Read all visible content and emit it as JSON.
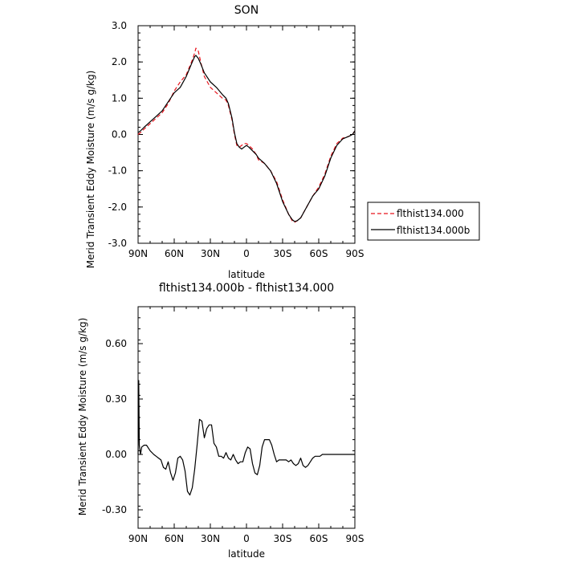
{
  "chart_data": [
    {
      "type": "line",
      "title": "SON",
      "xlabel": "latitude",
      "ylabel": "Merid Transient Eddy Moisture (m/s g/kg)",
      "x_ticks": [
        "90N",
        "60N",
        "30N",
        "0",
        "30S",
        "60S",
        "90S"
      ],
      "y_ticks": [
        "3.0",
        "2.0",
        "1.0",
        "0.0",
        "-1.0",
        "-2.0",
        "-3.0"
      ],
      "xlim": [
        90,
        -90
      ],
      "ylim": [
        -3,
        3
      ],
      "legend_position": "right",
      "series": [
        {
          "name": "flthist134.000",
          "color": "#e8141c",
          "dash": "dashed",
          "x": [
            90,
            88,
            85,
            80,
            75,
            70,
            65,
            60,
            55,
            50,
            45,
            43,
            42,
            40,
            38,
            35,
            30,
            25,
            20,
            17,
            15,
            12,
            10,
            8,
            6,
            4,
            2,
            0,
            -2,
            -5,
            -8,
            -10,
            -15,
            -20,
            -25,
            -30,
            -35,
            -38,
            -40,
            -42,
            -45,
            -50,
            -55,
            -60,
            -65,
            -70,
            -75,
            -80,
            -85,
            -88,
            -90
          ],
          "y": [
            0.0,
            0.05,
            0.15,
            0.3,
            0.45,
            0.6,
            0.85,
            1.2,
            1.45,
            1.65,
            2.05,
            2.25,
            2.38,
            2.3,
            2.0,
            1.6,
            1.3,
            1.15,
            1.0,
            0.95,
            0.8,
            0.4,
            0.0,
            -0.3,
            -0.35,
            -0.3,
            -0.25,
            -0.25,
            -0.3,
            -0.4,
            -0.55,
            -0.7,
            -0.8,
            -1.0,
            -1.3,
            -1.8,
            -2.2,
            -2.38,
            -2.42,
            -2.38,
            -2.3,
            -2.0,
            -1.7,
            -1.45,
            -1.1,
            -0.6,
            -0.25,
            -0.1,
            -0.05,
            0.0,
            0.1
          ]
        },
        {
          "name": "flthist134.000b",
          "color": "#000000",
          "dash": "solid",
          "x": [
            90,
            88,
            85,
            80,
            75,
            70,
            65,
            60,
            55,
            50,
            45,
            43,
            42,
            40,
            38,
            35,
            30,
            25,
            20,
            17,
            15,
            12,
            10,
            8,
            6,
            4,
            2,
            0,
            -2,
            -5,
            -8,
            -10,
            -15,
            -20,
            -25,
            -30,
            -35,
            -38,
            -40,
            -42,
            -45,
            -50,
            -55,
            -60,
            -65,
            -70,
            -75,
            -80,
            -85,
            -88,
            -90
          ],
          "y": [
            0.05,
            0.1,
            0.2,
            0.35,
            0.5,
            0.65,
            0.9,
            1.15,
            1.3,
            1.6,
            2.0,
            2.15,
            2.18,
            2.1,
            1.95,
            1.7,
            1.45,
            1.3,
            1.1,
            1.0,
            0.85,
            0.45,
            0.05,
            -0.25,
            -0.35,
            -0.4,
            -0.35,
            -0.3,
            -0.35,
            -0.45,
            -0.55,
            -0.65,
            -0.8,
            -1.0,
            -1.35,
            -1.85,
            -2.2,
            -2.35,
            -2.4,
            -2.38,
            -2.3,
            -2.0,
            -1.7,
            -1.5,
            -1.15,
            -0.65,
            -0.3,
            -0.12,
            -0.05,
            0.0,
            0.1
          ]
        }
      ]
    },
    {
      "type": "line",
      "title": "flthist134.000b - flthist134.000",
      "xlabel": "latitude",
      "ylabel": "Merid Transient Eddy Moisture (m/s g/kg)",
      "x_ticks": [
        "90N",
        "60N",
        "30N",
        "0",
        "30S",
        "60S",
        "90S"
      ],
      "y_ticks": [
        "0.60",
        "0.30",
        "0.00",
        "-0.30"
      ],
      "xlim": [
        90,
        -90
      ],
      "ylim": [
        -0.4,
        0.8
      ],
      "series": [
        {
          "color": "#000000",
          "dash": "solid",
          "x": [
            90,
            89.5,
            89,
            88,
            87,
            85,
            83,
            80,
            77,
            75,
            73,
            71,
            69,
            67,
            65,
            63,
            61,
            59,
            57,
            55,
            53,
            51,
            49,
            47,
            45,
            43,
            41,
            39,
            37,
            35,
            33,
            31,
            29,
            27,
            25,
            23,
            21,
            19,
            17,
            15,
            13,
            11,
            9,
            7,
            5,
            3,
            1,
            -1,
            -3,
            -5,
            -7,
            -9,
            -11,
            -13,
            -15,
            -17,
            -19,
            -21,
            -23,
            -25,
            -27,
            -29,
            -31,
            -33,
            -35,
            -37,
            -39,
            -41,
            -43,
            -45,
            -47,
            -49,
            -51,
            -53,
            -55,
            -57,
            -59,
            -61,
            -63,
            -65,
            -67,
            -69,
            -71,
            -73,
            -75,
            -77,
            -79,
            -81,
            -83,
            -85,
            -87,
            -89,
            -90
          ],
          "y": [
            0.0,
            0.4,
            0.05,
            0.0,
            0.04,
            0.05,
            0.05,
            0.02,
            0.0,
            -0.01,
            -0.02,
            -0.03,
            -0.07,
            -0.08,
            -0.04,
            -0.1,
            -0.14,
            -0.1,
            -0.02,
            -0.01,
            -0.03,
            -0.09,
            -0.2,
            -0.22,
            -0.18,
            -0.08,
            0.05,
            0.19,
            0.18,
            0.09,
            0.14,
            0.16,
            0.16,
            0.06,
            0.04,
            -0.01,
            -0.01,
            -0.02,
            0.01,
            -0.02,
            -0.03,
            0.0,
            -0.03,
            -0.05,
            -0.04,
            -0.04,
            0.01,
            0.04,
            0.03,
            -0.05,
            -0.1,
            -0.11,
            -0.06,
            0.04,
            0.08,
            0.08,
            0.08,
            0.05,
            0.0,
            -0.04,
            -0.03,
            -0.03,
            -0.03,
            -0.03,
            -0.04,
            -0.03,
            -0.05,
            -0.06,
            -0.05,
            -0.02,
            -0.06,
            -0.07,
            -0.06,
            -0.04,
            -0.02,
            -0.01,
            -0.01,
            -0.01,
            0.0,
            0.0,
            0.0,
            0.0,
            0.0,
            0.0,
            0.0,
            0.0,
            0.0,
            0.0,
            0.0,
            0.0,
            0.0,
            0.0,
            0.0
          ]
        }
      ]
    }
  ]
}
